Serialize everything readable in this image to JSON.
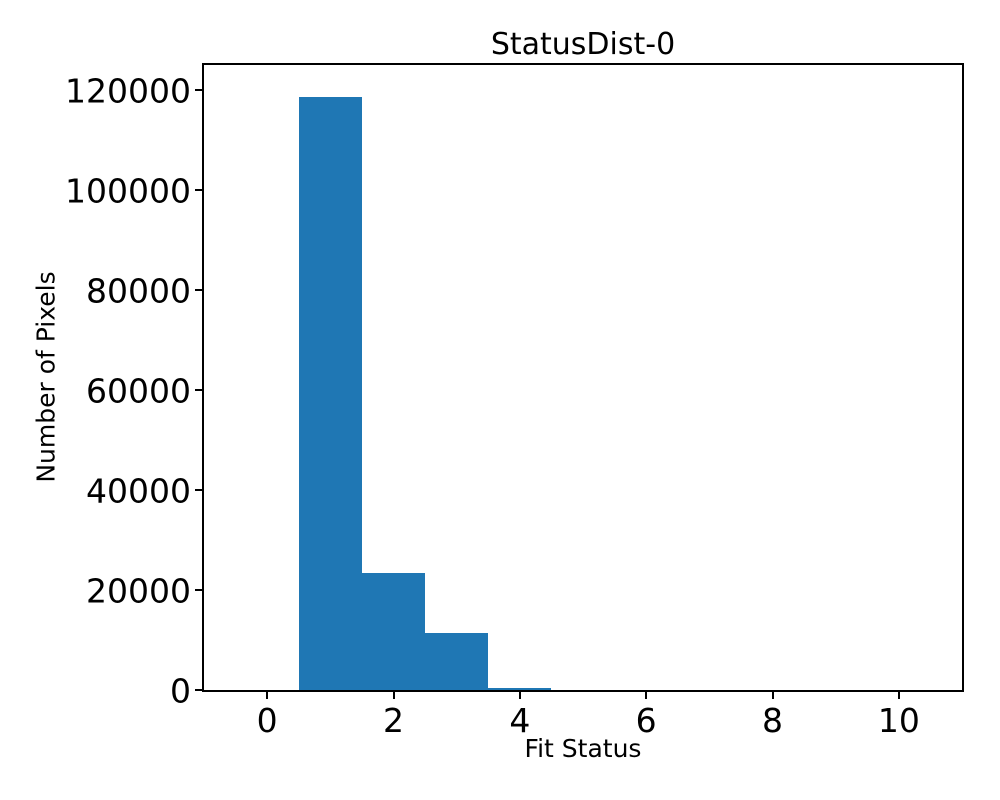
{
  "figure": {
    "title": "StatusDist-0",
    "xlabel": "Fit Status",
    "ylabel": "Number of Pixels"
  },
  "chart_data": {
    "type": "bar",
    "subtype": "histogram",
    "title": "StatusDist-0",
    "xlabel": "Fit Status",
    "ylabel": "Number of Pixels",
    "bar_color": "#1f77b4",
    "axis_color": "#000000",
    "background_color": "#ffffff",
    "grid": false,
    "legend": null,
    "xlim": [
      -1,
      11
    ],
    "ylim": [
      0,
      125000
    ],
    "xticks": [
      0,
      2,
      4,
      6,
      8,
      10
    ],
    "yticks": [
      0,
      20000,
      40000,
      60000,
      80000,
      100000,
      120000
    ],
    "bin_centers": [
      1,
      2,
      3,
      4
    ],
    "values": [
      118500,
      23400,
      11400,
      450
    ],
    "bins": [
      {
        "x0": 0.5,
        "x1": 1.5,
        "count": 118500
      },
      {
        "x0": 1.5,
        "x1": 2.5,
        "count": 23400
      },
      {
        "x0": 2.5,
        "x1": 3.5,
        "count": 11400
      },
      {
        "x0": 3.5,
        "x1": 4.5,
        "count": 450
      }
    ]
  }
}
